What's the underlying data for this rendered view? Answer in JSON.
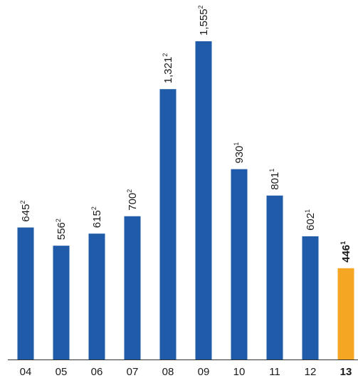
{
  "chart_data": {
    "type": "bar",
    "title": "",
    "xlabel": "",
    "ylabel": "",
    "categories": [
      "04",
      "05",
      "06",
      "07",
      "08",
      "09",
      "10",
      "11",
      "12",
      "13"
    ],
    "values": [
      645,
      556,
      615,
      700,
      1321,
      1555,
      930,
      801,
      602,
      446
    ],
    "value_labels": [
      "645",
      "556",
      "615",
      "700",
      "1,321",
      "1,555",
      "930",
      "801",
      "602",
      "446"
    ],
    "footnote_marks": [
      "2",
      "2",
      "2",
      "2",
      "2",
      "2",
      "1",
      "1",
      "1",
      "1"
    ],
    "highlight_index": 9,
    "ylim": [
      0,
      1800
    ],
    "grid": false,
    "legend": "none",
    "colors": {
      "bar": "#1f5ba8",
      "highlight": "#f5a623",
      "axis": "#333333"
    }
  }
}
